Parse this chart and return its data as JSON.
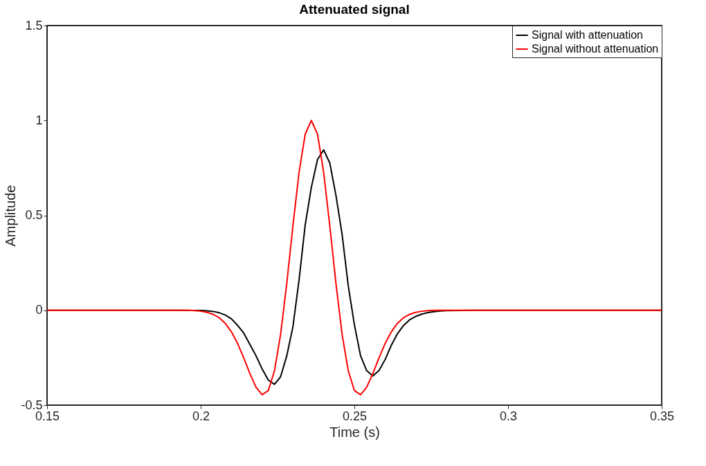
{
  "chart_data": {
    "type": "line",
    "title": "Attenuated signal",
    "xlabel": "Time (s)",
    "ylabel": "Amplitude",
    "xlim": [
      0.15,
      0.35
    ],
    "ylim": [
      -0.5,
      1.5
    ],
    "xticks": [
      0.15,
      0.2,
      0.25,
      0.3,
      0.35
    ],
    "yticks": [
      -0.5,
      0,
      0.5,
      1,
      1.5
    ],
    "grid": false,
    "legend": "top right",
    "marker": "none",
    "line_style": "solid",
    "series": [
      {
        "name": "Signal with attenuation",
        "color": "#000000",
        "x": [
          0.15,
          0.19,
          0.198,
          0.2,
          0.202,
          0.204,
          0.206,
          0.208,
          0.21,
          0.212,
          0.214,
          0.216,
          0.218,
          0.22,
          0.222,
          0.224,
          0.226,
          0.228,
          0.23,
          0.232,
          0.234,
          0.236,
          0.238,
          0.24,
          0.242,
          0.244,
          0.246,
          0.248,
          0.25,
          0.252,
          0.254,
          0.256,
          0.258,
          0.26,
          0.262,
          0.264,
          0.266,
          0.268,
          0.27,
          0.272,
          0.274,
          0.276,
          0.278,
          0.28,
          0.29,
          0.35
        ],
        "values": [
          0,
          0,
          -0.001,
          -0.001,
          -0.003,
          -0.006,
          -0.013,
          -0.025,
          -0.045,
          -0.08,
          -0.12,
          -0.18,
          -0.24,
          -0.31,
          -0.368,
          -0.39,
          -0.35,
          -0.24,
          -0.087,
          0.16,
          0.45,
          0.648,
          0.794,
          0.845,
          0.776,
          0.605,
          0.4,
          0.13,
          -0.076,
          -0.239,
          -0.318,
          -0.346,
          -0.318,
          -0.26,
          -0.185,
          -0.124,
          -0.08,
          -0.05,
          -0.032,
          -0.02,
          -0.012,
          -0.007,
          -0.004,
          -0.002,
          0,
          0
        ]
      },
      {
        "name": "Signal without attenuation",
        "color": "#ff0000",
        "x": [
          0.15,
          0.196,
          0.198,
          0.2,
          0.202,
          0.204,
          0.206,
          0.208,
          0.21,
          0.212,
          0.214,
          0.216,
          0.218,
          0.22,
          0.222,
          0.224,
          0.226,
          0.228,
          0.23,
          0.232,
          0.234,
          0.236,
          0.238,
          0.24,
          0.242,
          0.244,
          0.246,
          0.248,
          0.25,
          0.252,
          0.254,
          0.256,
          0.258,
          0.26,
          0.262,
          0.264,
          0.266,
          0.268,
          0.27,
          0.272,
          0.274,
          0.276,
          0.278,
          0.28,
          0.35
        ],
        "values": [
          0,
          0,
          -0.002,
          -0.005,
          -0.011,
          -0.021,
          -0.039,
          -0.069,
          -0.114,
          -0.175,
          -0.251,
          -0.334,
          -0.406,
          -0.445,
          -0.423,
          -0.319,
          -0.126,
          0.142,
          0.445,
          0.727,
          0.928,
          1.0,
          0.928,
          0.727,
          0.445,
          0.142,
          -0.126,
          -0.319,
          -0.423,
          -0.445,
          -0.406,
          -0.334,
          -0.251,
          -0.175,
          -0.114,
          -0.069,
          -0.039,
          -0.021,
          -0.011,
          -0.005,
          -0.002,
          0,
          0,
          0,
          0
        ]
      }
    ]
  }
}
